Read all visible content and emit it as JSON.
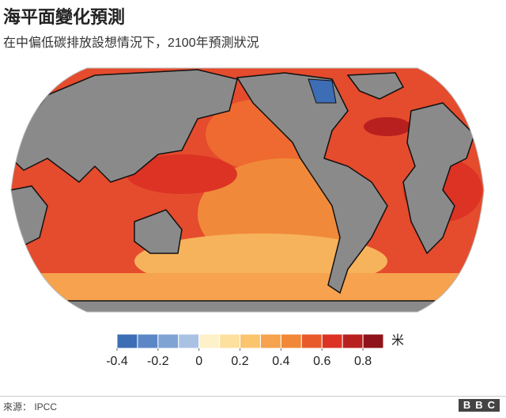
{
  "header": {
    "title": "海平面變化預測",
    "subtitle": "在中偏低碳排放設想情況下，2100年預測狀況"
  },
  "legend": {
    "unit": "米",
    "bins": [
      -0.4,
      -0.3,
      -0.2,
      -0.1,
      0,
      0.1,
      0.2,
      0.3,
      0.4,
      0.5,
      0.6,
      0.7,
      0.8,
      0.9
    ],
    "colors": [
      "#3d6db5",
      "#5b87c6",
      "#7fa3d3",
      "#a9c2e4",
      "#fdf1c9",
      "#fde0a0",
      "#fbc56e",
      "#f6a24e",
      "#f08838",
      "#e95a2a",
      "#dc3325",
      "#b8201f",
      "#8e1419"
    ],
    "ticks": [
      -0.4,
      -0.2,
      0,
      0.2,
      0.4,
      0.6,
      0.8
    ]
  },
  "footer": {
    "source": "來源： IPCC",
    "logo": "BBC"
  }
}
